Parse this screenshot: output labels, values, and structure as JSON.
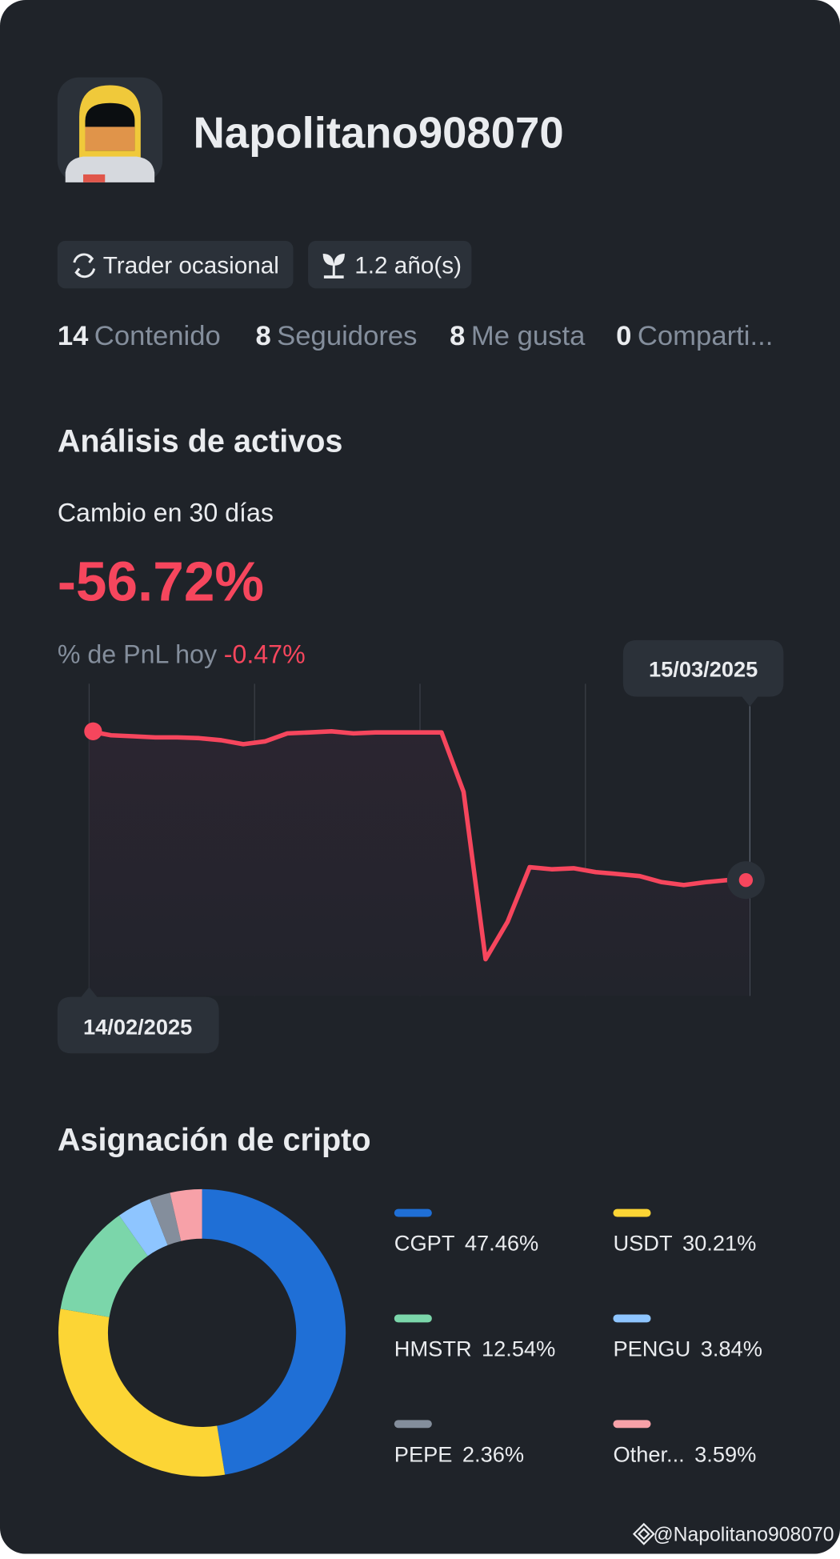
{
  "profile": {
    "username": "Napolitano908070",
    "badges": [
      "Trader ocasional",
      "1.2 año(s)"
    ],
    "stats": [
      {
        "count": 14,
        "label": "Contenido"
      },
      {
        "count": 8,
        "label": "Seguidores"
      },
      {
        "count": 8,
        "label": "Me gusta"
      },
      {
        "count": 0,
        "label": "Comparti..."
      }
    ]
  },
  "analysis": {
    "title": "Análisis de activos",
    "change_label": "Cambio en 30 días",
    "change_value": "-56.72%",
    "pnl_label": "% de PnL hoy",
    "pnl_value": "-0.47%"
  },
  "chart_data": [
    {
      "type": "line",
      "color": "#f6465d",
      "categories": [
        "14/02/2025",
        null,
        null,
        null,
        null,
        null,
        null,
        null,
        null,
        null,
        null,
        null,
        null,
        null,
        null,
        null,
        null,
        null,
        null,
        null,
        null,
        null,
        null,
        null,
        null,
        null,
        null,
        null,
        null,
        null,
        "15/03/2025"
      ],
      "values": [
        0,
        -1.5,
        -1.9,
        -2.3,
        -2.3,
        -2.6,
        -3.4,
        -4.9,
        -3.8,
        -0.8,
        -0.4,
        0,
        -0.8,
        -0.4,
        -0.4,
        -0.4,
        -0.4,
        -23.1,
        -86.9,
        -72.6,
        -51.8,
        -52.6,
        -52.2,
        -53.7,
        -54.4,
        -55.2,
        -57.5,
        -58.6,
        -57.5,
        -56.7,
        -56.72
      ]
    },
    {
      "type": "donut",
      "title": "Asignación de cripto",
      "series": [
        {
          "name": "CGPT",
          "color": "#1f6fd6",
          "value": 47.46,
          "value_label": "47.46%"
        },
        {
          "name": "USDT",
          "color": "#fcd535",
          "value": 30.21,
          "value_label": "30.21%"
        },
        {
          "name": "HMSTR",
          "color": "#7bd6aa",
          "value": 12.54,
          "value_label": "12.54%"
        },
        {
          "name": "PENGU",
          "color": "#8ec5ff",
          "value": 3.84,
          "value_label": "3.84%"
        },
        {
          "name": "PEPE",
          "color": "#848e9c",
          "value": 2.36,
          "value_label": "2.36%"
        },
        {
          "name": "Other...",
          "color": "#f7a1a8",
          "value": 3.59,
          "value_label": "3.59%"
        }
      ]
    }
  ],
  "watermark": "@Napolitano908070"
}
